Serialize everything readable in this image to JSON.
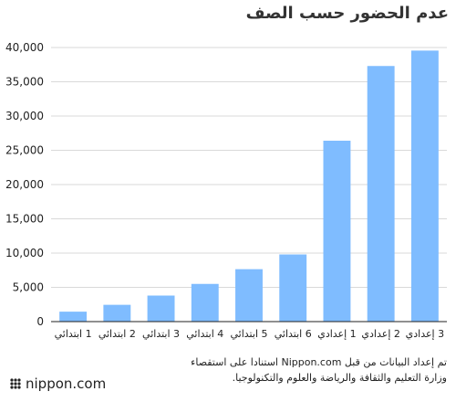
{
  "title": "عدم الحضور حسب الصف",
  "source": {
    "line1": "تم إعداد البيانات من قبل Nippon.com استنادا على استقصاء",
    "line2": "وزارة التعليم والثقافة والرياضة والعلوم والتكنولوجيا."
  },
  "logo": {
    "text": "nippon.com"
  },
  "colors": {
    "bar": "#7fbcff",
    "grid": "#d9d9d9",
    "axis": "#222222",
    "text": "#222222"
  },
  "chart_data": {
    "type": "bar",
    "title": "عدم الحضور حسب الصف",
    "xlabel": "",
    "ylabel": "",
    "categories": [
      "1 ابتدائي",
      "2 ابتدائي",
      "3 ابتدائي",
      "4 ابتدائي",
      "5 ابتدائي",
      "6 ابتدائي",
      "1 إعدادي",
      "2 إعدادي",
      "3 إعدادي"
    ],
    "values": [
      1450,
      2450,
      3800,
      5500,
      7650,
      9800,
      26400,
      37300,
      39550
    ],
    "ylim": [
      0,
      40000
    ],
    "yticks": [
      0,
      5000,
      10000,
      15000,
      20000,
      25000,
      30000,
      35000,
      40000
    ],
    "ytick_labels": [
      "0",
      "5,000",
      "10,000",
      "15,000",
      "20,000",
      "25,000",
      "30,000",
      "35,000",
      "40,000"
    ],
    "grid": true
  }
}
